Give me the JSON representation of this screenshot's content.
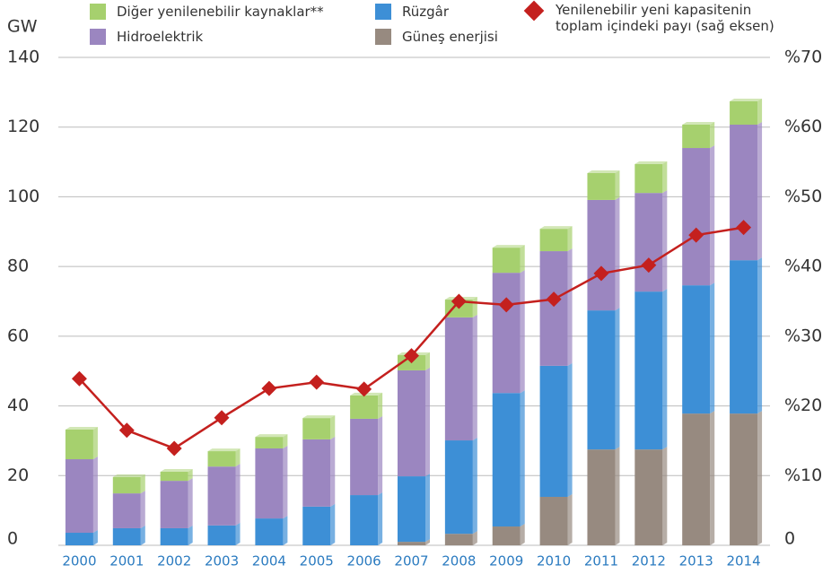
{
  "chart_data": {
    "type": "bar",
    "stacked": true,
    "y_label": "GW",
    "categories": [
      "2000",
      "2001",
      "2002",
      "2003",
      "2004",
      "2005",
      "2006",
      "2007",
      "2008",
      "2009",
      "2010",
      "2011",
      "2012",
      "2013",
      "2014"
    ],
    "series": [
      {
        "name": "Güneş enerjisi",
        "color": "#978a80",
        "values": [
          0,
          0,
          0,
          0,
          0,
          0,
          0,
          1,
          3.3,
          5.4,
          13.9,
          27.5,
          27.5,
          37.8,
          37.8
        ]
      },
      {
        "name": "Rüzgâr",
        "color": "#3d8fd6",
        "values": [
          3.6,
          4.9,
          4.9,
          5.7,
          7.7,
          11.1,
          14.4,
          18.8,
          26.8,
          38.3,
          37.6,
          39.9,
          45.3,
          36.8,
          44
        ]
      },
      {
        "name": "Hidroelektrik",
        "color": "#9b86c0",
        "values": [
          21.1,
          10,
          13.6,
          16.9,
          20.1,
          19.3,
          21.9,
          30.4,
          35.3,
          34.5,
          32.9,
          31.7,
          28.3,
          39.4,
          38.9
        ]
      },
      {
        "name": "Diğer yenilenebilir kaynaklar**",
        "color": "#a6d06e",
        "values": [
          8.5,
          4.7,
          2.6,
          4.4,
          3.3,
          6.1,
          6.7,
          4.4,
          5.1,
          7.2,
          6.4,
          7.7,
          8.3,
          6.7,
          6.7
        ]
      },
      {
        "name": "Yenilenebilir yeni kapasitenin toplam içindeki payı (sağ eksen)",
        "color": "#c4201e",
        "type": "line",
        "axis": "y2",
        "values": [
          23.9,
          16.5,
          13.9,
          18.3,
          22.5,
          23.4,
          22.4,
          27.2,
          35,
          34.5,
          35.3,
          39,
          40.2,
          44.5,
          45.6
        ]
      }
    ],
    "ylim": [
      0,
      140
    ],
    "yticks": [
      0,
      20,
      40,
      60,
      80,
      100,
      120,
      140
    ],
    "y2lim": [
      0,
      70
    ],
    "y2ticks": [
      0,
      {
        "value": 10,
        "label": "%10"
      },
      {
        "value": 20,
        "label": "%20"
      },
      {
        "value": 30,
        "label": "%30"
      },
      {
        "value": 40,
        "label": "%40"
      },
      {
        "value": 50,
        "label": "%50"
      },
      {
        "value": 60,
        "label": "%60"
      },
      {
        "value": 70,
        "label": "%70"
      }
    ],
    "grid": true,
    "legend": "top"
  }
}
